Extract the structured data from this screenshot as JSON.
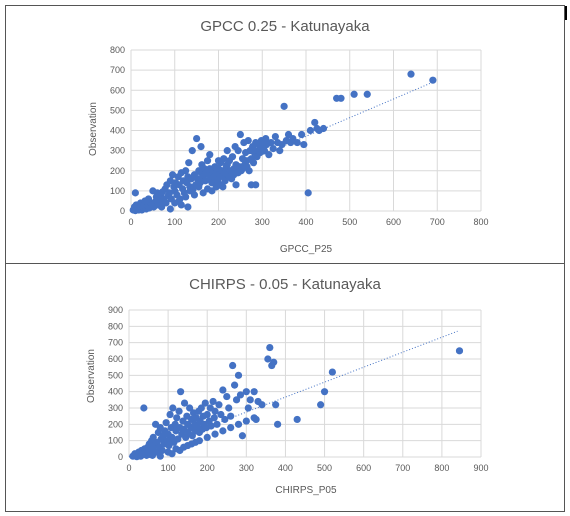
{
  "chart_data": [
    {
      "type": "scatter",
      "title": "GPCC 0.25 - Katunayaka",
      "xlabel": "GPCC_P25",
      "ylabel": "Observation",
      "xlim": [
        0,
        800
      ],
      "ylim": [
        0,
        800
      ],
      "xticks": [
        0,
        100,
        200,
        300,
        400,
        500,
        600,
        700,
        800
      ],
      "yticks": [
        0,
        100,
        200,
        300,
        400,
        500,
        600,
        700,
        800
      ],
      "grid": true,
      "trendline": {
        "style": "dotted",
        "from": [
          0,
          0
        ],
        "to": [
          690,
          640
        ]
      },
      "color": "#4472C4",
      "points": [
        [
          5,
          5
        ],
        [
          8,
          20
        ],
        [
          10,
          2
        ],
        [
          12,
          30
        ],
        [
          15,
          10
        ],
        [
          18,
          5
        ],
        [
          20,
          15
        ],
        [
          22,
          40
        ],
        [
          25,
          5
        ],
        [
          28,
          20
        ],
        [
          10,
          90
        ],
        [
          30,
          30
        ],
        [
          32,
          50
        ],
        [
          35,
          10
        ],
        [
          38,
          25
        ],
        [
          40,
          60
        ],
        [
          42,
          15
        ],
        [
          45,
          40
        ],
        [
          48,
          30
        ],
        [
          50,
          100
        ],
        [
          52,
          20
        ],
        [
          55,
          45
        ],
        [
          58,
          70
        ],
        [
          60,
          90
        ],
        [
          62,
          30
        ],
        [
          65,
          55
        ],
        [
          68,
          80
        ],
        [
          70,
          20
        ],
        [
          72,
          95
        ],
        [
          75,
          60
        ],
        [
          78,
          110
        ],
        [
          80,
          40
        ],
        [
          82,
          130
        ],
        [
          85,
          75
        ],
        [
          88,
          90
        ],
        [
          90,
          150
        ],
        [
          92,
          60
        ],
        [
          95,
          180
        ],
        [
          98,
          120
        ],
        [
          100,
          100
        ],
        [
          102,
          140
        ],
        [
          105,
          80
        ],
        [
          108,
          170
        ],
        [
          110,
          130
        ],
        [
          112,
          60
        ],
        [
          115,
          190
        ],
        [
          118,
          110
        ],
        [
          120,
          150
        ],
        [
          122,
          90
        ],
        [
          125,
          200
        ],
        [
          128,
          140
        ],
        [
          130,
          170
        ],
        [
          132,
          240
        ],
        [
          135,
          120
        ],
        [
          138,
          160
        ],
        [
          140,
          300
        ],
        [
          142,
          110
        ],
        [
          145,
          180
        ],
        [
          148,
          130
        ],
        [
          150,
          360
        ],
        [
          152,
          160
        ],
        [
          155,
          200
        ],
        [
          158,
          140
        ],
        [
          160,
          190
        ],
        [
          162,
          230
        ],
        [
          165,
          170
        ],
        [
          168,
          210
        ],
        [
          170,
          150
        ],
        [
          172,
          190
        ],
        [
          175,
          250
        ],
        [
          178,
          180
        ],
        [
          180,
          210
        ],
        [
          182,
          160
        ],
        [
          185,
          140
        ],
        [
          188,
          200
        ],
        [
          190,
          170
        ],
        [
          192,
          220
        ],
        [
          195,
          190
        ],
        [
          198,
          150
        ],
        [
          200,
          210
        ],
        [
          202,
          180
        ],
        [
          205,
          240
        ],
        [
          208,
          200
        ],
        [
          210,
          170
        ],
        [
          212,
          260
        ],
        [
          215,
          190
        ],
        [
          218,
          220
        ],
        [
          220,
          300
        ],
        [
          222,
          180
        ],
        [
          225,
          250
        ],
        [
          228,
          200
        ],
        [
          230,
          160
        ],
        [
          232,
          270
        ],
        [
          235,
          210
        ],
        [
          238,
          320
        ],
        [
          240,
          230
        ],
        [
          242,
          190
        ],
        [
          245,
          300
        ],
        [
          248,
          220
        ],
        [
          250,
          380
        ],
        [
          252,
          200
        ],
        [
          255,
          260
        ],
        [
          258,
          340
        ],
        [
          260,
          230
        ],
        [
          262,
          290
        ],
        [
          265,
          250
        ],
        [
          268,
          350
        ],
        [
          270,
          200
        ],
        [
          272,
          300
        ],
        [
          275,
          260
        ],
        [
          278,
          320
        ],
        [
          280,
          240
        ],
        [
          282,
          290
        ],
        [
          285,
          340
        ],
        [
          288,
          270
        ],
        [
          290,
          300
        ],
        [
          292,
          330
        ],
        [
          295,
          290
        ],
        [
          298,
          350
        ],
        [
          300,
          320
        ],
        [
          305,
          300
        ],
        [
          308,
          360
        ],
        [
          310,
          330
        ],
        [
          315,
          280
        ],
        [
          320,
          340
        ],
        [
          325,
          310
        ],
        [
          330,
          370
        ],
        [
          335,
          340
        ],
        [
          340,
          300
        ],
        [
          345,
          330
        ],
        [
          350,
          520
        ],
        [
          355,
          350
        ],
        [
          360,
          380
        ],
        [
          365,
          340
        ],
        [
          370,
          360
        ],
        [
          380,
          340
        ],
        [
          390,
          380
        ],
        [
          395,
          330
        ],
        [
          405,
          90
        ],
        [
          410,
          400
        ],
        [
          420,
          440
        ],
        [
          425,
          410
        ],
        [
          430,
          400
        ],
        [
          440,
          410
        ],
        [
          470,
          560
        ],
        [
          480,
          560
        ],
        [
          510,
          580
        ],
        [
          540,
          580
        ],
        [
          640,
          680
        ],
        [
          690,
          650
        ],
        [
          60,
          50
        ],
        [
          70,
          30
        ],
        [
          90,
          10
        ],
        [
          100,
          40
        ],
        [
          110,
          50
        ],
        [
          115,
          30
        ],
        [
          125,
          70
        ],
        [
          130,
          20
        ],
        [
          135,
          100
        ],
        [
          145,
          80
        ],
        [
          155,
          120
        ],
        [
          165,
          90
        ],
        [
          175,
          110
        ],
        [
          185,
          100
        ],
        [
          195,
          120
        ],
        [
          205,
          130
        ],
        [
          215,
          150
        ],
        [
          225,
          170
        ],
        [
          235,
          180
        ],
        [
          245,
          190
        ],
        [
          255,
          210
        ],
        [
          265,
          220
        ],
        [
          275,
          130
        ],
        [
          285,
          130
        ],
        [
          240,
          130
        ],
        [
          210,
          120
        ],
        [
          160,
          320
        ],
        [
          180,
          280
        ],
        [
          200,
          250
        ],
        [
          220,
          230
        ]
      ]
    },
    {
      "type": "scatter",
      "title": "CHIRPS - 0.05 - Katunayaka",
      "xlabel": "CHIRPS_P05",
      "ylabel": "Observation",
      "xlim": [
        0,
        900
      ],
      "ylim": [
        0,
        900
      ],
      "xticks": [
        0,
        100,
        200,
        300,
        400,
        500,
        600,
        700,
        800,
        900
      ],
      "yticks": [
        0,
        100,
        200,
        300,
        400,
        500,
        600,
        700,
        800,
        900
      ],
      "grid": true,
      "trendline": {
        "style": "dotted",
        "from": [
          0,
          0
        ],
        "to": [
          840,
          770
        ]
      },
      "color": "#4472C4",
      "points": [
        [
          10,
          5
        ],
        [
          15,
          20
        ],
        [
          20,
          2
        ],
        [
          25,
          30
        ],
        [
          28,
          10
        ],
        [
          30,
          5
        ],
        [
          32,
          40
        ],
        [
          35,
          15
        ],
        [
          38,
          300
        ],
        [
          40,
          50
        ],
        [
          42,
          20
        ],
        [
          45,
          10
        ],
        [
          48,
          60
        ],
        [
          50,
          30
        ],
        [
          52,
          80
        ],
        [
          55,
          15
        ],
        [
          58,
          100
        ],
        [
          60,
          45
        ],
        [
          62,
          120
        ],
        [
          65,
          70
        ],
        [
          68,
          200
        ],
        [
          70,
          30
        ],
        [
          72,
          90
        ],
        [
          75,
          150
        ],
        [
          78,
          60
        ],
        [
          80,
          180
        ],
        [
          82,
          110
        ],
        [
          85,
          40
        ],
        [
          88,
          130
        ],
        [
          90,
          80
        ],
        [
          92,
          160
        ],
        [
          95,
          210
        ],
        [
          98,
          100
        ],
        [
          100,
          140
        ],
        [
          102,
          70
        ],
        [
          105,
          260
        ],
        [
          108,
          180
        ],
        [
          110,
          120
        ],
        [
          112,
          300
        ],
        [
          115,
          90
        ],
        [
          118,
          200
        ],
        [
          120,
          160
        ],
        [
          122,
          240
        ],
        [
          125,
          110
        ],
        [
          128,
          280
        ],
        [
          130,
          180
        ],
        [
          132,
          400
        ],
        [
          135,
          140
        ],
        [
          138,
          220
        ],
        [
          140,
          170
        ],
        [
          142,
          330
        ],
        [
          145,
          120
        ],
        [
          148,
          250
        ],
        [
          150,
          200
        ],
        [
          152,
          150
        ],
        [
          155,
          300
        ],
        [
          158,
          180
        ],
        [
          160,
          230
        ],
        [
          162,
          130
        ],
        [
          165,
          270
        ],
        [
          168,
          200
        ],
        [
          170,
          160
        ],
        [
          172,
          240
        ],
        [
          175,
          190
        ],
        [
          178,
          280
        ],
        [
          180,
          150
        ],
        [
          182,
          220
        ],
        [
          185,
          300
        ],
        [
          188,
          170
        ],
        [
          190,
          250
        ],
        [
          192,
          200
        ],
        [
          195,
          330
        ],
        [
          198,
          180
        ],
        [
          200,
          260
        ],
        [
          205,
          220
        ],
        [
          208,
          300
        ],
        [
          210,
          190
        ],
        [
          215,
          340
        ],
        [
          218,
          240
        ],
        [
          220,
          280
        ],
        [
          225,
          200
        ],
        [
          230,
          320
        ],
        [
          235,
          260
        ],
        [
          240,
          410
        ],
        [
          245,
          230
        ],
        [
          250,
          370
        ],
        [
          255,
          300
        ],
        [
          260,
          250
        ],
        [
          265,
          560
        ],
        [
          270,
          440
        ],
        [
          275,
          350
        ],
        [
          280,
          500
        ],
        [
          285,
          380
        ],
        [
          290,
          130
        ],
        [
          300,
          400
        ],
        [
          305,
          300
        ],
        [
          310,
          350
        ],
        [
          320,
          400
        ],
        [
          325,
          230
        ],
        [
          330,
          340
        ],
        [
          340,
          320
        ],
        [
          355,
          600
        ],
        [
          360,
          670
        ],
        [
          365,
          560
        ],
        [
          370,
          580
        ],
        [
          375,
          320
        ],
        [
          380,
          200
        ],
        [
          430,
          230
        ],
        [
          490,
          320
        ],
        [
          500,
          400
        ],
        [
          520,
          520
        ],
        [
          845,
          650
        ],
        [
          60,
          10
        ],
        [
          80,
          5
        ],
        [
          100,
          30
        ],
        [
          120,
          50
        ],
        [
          140,
          60
        ],
        [
          160,
          80
        ],
        [
          180,
          100
        ],
        [
          200,
          120
        ],
        [
          220,
          140
        ],
        [
          240,
          160
        ],
        [
          260,
          180
        ],
        [
          280,
          200
        ],
        [
          300,
          220
        ],
        [
          320,
          240
        ],
        [
          110,
          20
        ],
        [
          130,
          40
        ],
        [
          150,
          70
        ],
        [
          170,
          90
        ]
      ]
    }
  ]
}
